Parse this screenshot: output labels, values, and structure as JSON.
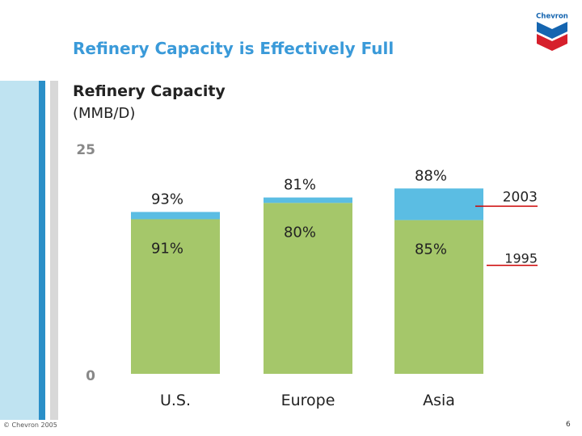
{
  "slide": {
    "title": "Refinery Capacity is Effectively Full",
    "footer_copyright": "© Chevron 2005",
    "page_number": "6"
  },
  "logo": {
    "text": "Chevron",
    "icon": "chevron-logo-icon"
  },
  "chart_data": {
    "type": "bar",
    "stacked": true,
    "title": "Refinery Capacity",
    "subtitle": "(MMB/D)",
    "categories": [
      "U.S.",
      "Europe",
      "Asia"
    ],
    "series": [
      {
        "name": "1995",
        "values": [
          17.1,
          18.9,
          17.0
        ],
        "utilization": [
          "91%",
          "80%",
          "85%"
        ],
        "color": "#a5c76a"
      },
      {
        "name": "2003",
        "values": [
          0.8,
          0.6,
          3.5
        ],
        "utilization": [
          "93%",
          "81%",
          "88%"
        ],
        "color": "#5bbde3"
      }
    ],
    "ylim": [
      0,
      25
    ],
    "yticks": [
      "0",
      "25"
    ],
    "legend": {
      "labels": [
        "2003",
        "1995"
      ],
      "line_color": "#cc0000",
      "placement": "right"
    }
  },
  "colors": {
    "title": "#3a9ad9",
    "text": "#222222",
    "axis": "#888888"
  }
}
